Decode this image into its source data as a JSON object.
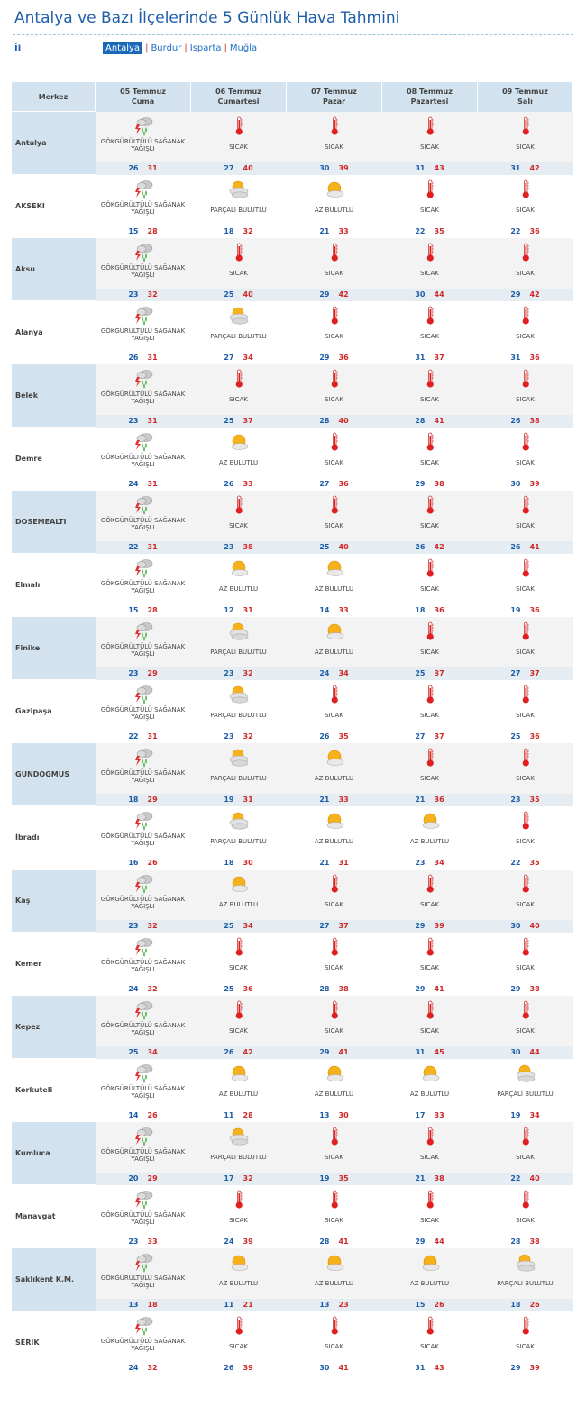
{
  "page": {
    "title": "Antalya ve Bazı İlçelerinde 5 Günlük Hava Tahmini",
    "il_label": "İl",
    "provinces": [
      "Antalya",
      "Burdur",
      "Isparta",
      "Muğla"
    ],
    "active_province": "Antalya"
  },
  "table": {
    "merkez_label": "Merkez",
    "days": [
      {
        "date": "05 Temmuz",
        "weekday": "Cuma"
      },
      {
        "date": "06 Temmuz",
        "weekday": "Cumartesi"
      },
      {
        "date": "07 Temmuz",
        "weekday": "Pazar"
      },
      {
        "date": "08 Temmuz",
        "weekday": "Pazartesi"
      },
      {
        "date": "09 Temmuz",
        "weekday": "Salı"
      }
    ],
    "rows": [
      {
        "city": "Antalya",
        "f": [
          [
            "storm-icon",
            "GÖKGÜRÜLTÜLÜ SAĞANAK YAĞIŞLI",
            "26",
            "31"
          ],
          [
            "thermometer-icon",
            "SICAK",
            "27",
            "40"
          ],
          [
            "thermometer-icon",
            "SICAK",
            "30",
            "39"
          ],
          [
            "thermometer-icon",
            "SICAK",
            "31",
            "43"
          ],
          [
            "thermometer-icon",
            "SICAK",
            "31",
            "42"
          ]
        ]
      },
      {
        "city": "AKSEKI",
        "f": [
          [
            "storm-icon",
            "GÖKGÜRÜLTÜLÜ SAĞANAK YAĞIŞLI",
            "15",
            "28"
          ],
          [
            "partly-cloudy-icon",
            "PARÇALI BULUTLU",
            "18",
            "32"
          ],
          [
            "mostly-sunny-icon",
            "AZ BULUTLU",
            "21",
            "33"
          ],
          [
            "thermometer-icon",
            "SICAK",
            "22",
            "35"
          ],
          [
            "thermometer-icon",
            "SICAK",
            "22",
            "36"
          ]
        ]
      },
      {
        "city": "Aksu",
        "f": [
          [
            "storm-icon",
            "GÖKGÜRÜLTÜLÜ SAĞANAK YAĞIŞLI",
            "23",
            "32"
          ],
          [
            "thermometer-icon",
            "SICAK",
            "25",
            "40"
          ],
          [
            "thermometer-icon",
            "SICAK",
            "29",
            "42"
          ],
          [
            "thermometer-icon",
            "SICAK",
            "30",
            "44"
          ],
          [
            "thermometer-icon",
            "SICAK",
            "29",
            "42"
          ]
        ]
      },
      {
        "city": "Alanya",
        "f": [
          [
            "storm-icon",
            "GÖKGÜRÜLTÜLÜ SAĞANAK YAĞIŞLI",
            "26",
            "31"
          ],
          [
            "partly-cloudy-icon",
            "PARÇALI BULUTLU",
            "27",
            "34"
          ],
          [
            "thermometer-icon",
            "SICAK",
            "29",
            "36"
          ],
          [
            "thermometer-icon",
            "SICAK",
            "31",
            "37"
          ],
          [
            "thermometer-icon",
            "SICAK",
            "31",
            "36"
          ]
        ]
      },
      {
        "city": "Belek",
        "f": [
          [
            "storm-icon",
            "GÖKGÜRÜLTÜLÜ SAĞANAK YAĞIŞLI",
            "23",
            "31"
          ],
          [
            "thermometer-icon",
            "SICAK",
            "25",
            "37"
          ],
          [
            "thermometer-icon",
            "SICAK",
            "28",
            "40"
          ],
          [
            "thermometer-icon",
            "SICAK",
            "28",
            "41"
          ],
          [
            "thermometer-icon",
            "SICAK",
            "26",
            "38"
          ]
        ]
      },
      {
        "city": "Demre",
        "f": [
          [
            "storm-icon",
            "GÖKGÜRÜLTÜLÜ SAĞANAK YAĞIŞLI",
            "24",
            "31"
          ],
          [
            "mostly-sunny-icon",
            "AZ BULUTLU",
            "26",
            "33"
          ],
          [
            "thermometer-icon",
            "SICAK",
            "27",
            "36"
          ],
          [
            "thermometer-icon",
            "SICAK",
            "29",
            "38"
          ],
          [
            "thermometer-icon",
            "SICAK",
            "30",
            "39"
          ]
        ]
      },
      {
        "city": "DOSEMEALTI",
        "f": [
          [
            "storm-icon",
            "GÖKGÜRÜLTÜLÜ SAĞANAK YAĞIŞLI",
            "22",
            "31"
          ],
          [
            "thermometer-icon",
            "SICAK",
            "23",
            "38"
          ],
          [
            "thermometer-icon",
            "SICAK",
            "25",
            "40"
          ],
          [
            "thermometer-icon",
            "SICAK",
            "26",
            "42"
          ],
          [
            "thermometer-icon",
            "SICAK",
            "26",
            "41"
          ]
        ]
      },
      {
        "city": "Elmalı",
        "f": [
          [
            "storm-icon",
            "GÖKGÜRÜLTÜLÜ SAĞANAK YAĞIŞLI",
            "15",
            "28"
          ],
          [
            "mostly-sunny-icon",
            "AZ BULUTLU",
            "12",
            "31"
          ],
          [
            "mostly-sunny-icon",
            "AZ BULUTLU",
            "14",
            "33"
          ],
          [
            "thermometer-icon",
            "SICAK",
            "18",
            "36"
          ],
          [
            "thermometer-icon",
            "SICAK",
            "19",
            "36"
          ]
        ]
      },
      {
        "city": "Finike",
        "f": [
          [
            "storm-icon",
            "GÖKGÜRÜLTÜLÜ SAĞANAK YAĞIŞLI",
            "23",
            "29"
          ],
          [
            "partly-cloudy-icon",
            "PARÇALI BULUTLU",
            "23",
            "32"
          ],
          [
            "mostly-sunny-icon",
            "AZ BULUTLU",
            "24",
            "34"
          ],
          [
            "thermometer-icon",
            "SICAK",
            "25",
            "37"
          ],
          [
            "thermometer-icon",
            "SICAK",
            "27",
            "37"
          ]
        ]
      },
      {
        "city": "Gazipaşa",
        "f": [
          [
            "storm-icon",
            "GÖKGÜRÜLTÜLÜ SAĞANAK YAĞIŞLI",
            "22",
            "31"
          ],
          [
            "partly-cloudy-icon",
            "PARÇALI BULUTLU",
            "23",
            "32"
          ],
          [
            "thermometer-icon",
            "SICAK",
            "26",
            "35"
          ],
          [
            "thermometer-icon",
            "SICAK",
            "27",
            "37"
          ],
          [
            "thermometer-icon",
            "SICAK",
            "25",
            "36"
          ]
        ]
      },
      {
        "city": "GUNDOGMUS",
        "f": [
          [
            "storm-icon",
            "GÖKGÜRÜLTÜLÜ SAĞANAK YAĞIŞLI",
            "18",
            "29"
          ],
          [
            "partly-cloudy-icon",
            "PARÇALI BULUTLU",
            "19",
            "31"
          ],
          [
            "mostly-sunny-icon",
            "AZ BULUTLU",
            "21",
            "33"
          ],
          [
            "thermometer-icon",
            "SICAK",
            "21",
            "36"
          ],
          [
            "thermometer-icon",
            "SICAK",
            "23",
            "35"
          ]
        ]
      },
      {
        "city": "İbradı",
        "f": [
          [
            "storm-icon",
            "GÖKGÜRÜLTÜLÜ SAĞANAK YAĞIŞLI",
            "16",
            "26"
          ],
          [
            "partly-cloudy-icon",
            "PARÇALI BULUTLU",
            "18",
            "30"
          ],
          [
            "mostly-sunny-icon",
            "AZ BULUTLU",
            "21",
            "31"
          ],
          [
            "mostly-sunny-icon",
            "AZ BULUTLU",
            "23",
            "34"
          ],
          [
            "thermometer-icon",
            "SICAK",
            "22",
            "35"
          ]
        ]
      },
      {
        "city": "Kaş",
        "f": [
          [
            "storm-icon",
            "GÖKGÜRÜLTÜLÜ SAĞANAK YAĞIŞLI",
            "23",
            "32"
          ],
          [
            "mostly-sunny-icon",
            "AZ BULUTLU",
            "25",
            "34"
          ],
          [
            "thermometer-icon",
            "SICAK",
            "27",
            "37"
          ],
          [
            "thermometer-icon",
            "SICAK",
            "29",
            "39"
          ],
          [
            "thermometer-icon",
            "SICAK",
            "30",
            "40"
          ]
        ]
      },
      {
        "city": "Kemer",
        "f": [
          [
            "storm-icon",
            "GÖKGÜRÜLTÜLÜ SAĞANAK YAĞIŞLI",
            "24",
            "32"
          ],
          [
            "thermometer-icon",
            "SICAK",
            "25",
            "36"
          ],
          [
            "thermometer-icon",
            "SICAK",
            "28",
            "38"
          ],
          [
            "thermometer-icon",
            "SICAK",
            "29",
            "41"
          ],
          [
            "thermometer-icon",
            "SICAK",
            "29",
            "38"
          ]
        ]
      },
      {
        "city": "Kepez",
        "f": [
          [
            "storm-icon",
            "GÖKGÜRÜLTÜLÜ SAĞANAK YAĞIŞLI",
            "25",
            "34"
          ],
          [
            "thermometer-icon",
            "SICAK",
            "26",
            "42"
          ],
          [
            "thermometer-icon",
            "SICAK",
            "29",
            "41"
          ],
          [
            "thermometer-icon",
            "SICAK",
            "31",
            "45"
          ],
          [
            "thermometer-icon",
            "SICAK",
            "30",
            "44"
          ]
        ]
      },
      {
        "city": "Korkuteli",
        "f": [
          [
            "storm-icon",
            "GÖKGÜRÜLTÜLÜ SAĞANAK YAĞIŞLI",
            "14",
            "26"
          ],
          [
            "mostly-sunny-icon",
            "AZ BULUTLU",
            "11",
            "28"
          ],
          [
            "mostly-sunny-icon",
            "AZ BULUTLU",
            "13",
            "30"
          ],
          [
            "mostly-sunny-icon",
            "AZ BULUTLU",
            "17",
            "33"
          ],
          [
            "partly-cloudy-icon",
            "PARÇALI BULUTLU",
            "19",
            "34"
          ]
        ]
      },
      {
        "city": "Kumluca",
        "f": [
          [
            "storm-icon",
            "GÖKGÜRÜLTÜLÜ SAĞANAK YAĞIŞLI",
            "20",
            "29"
          ],
          [
            "partly-cloudy-icon",
            "PARÇALI BULUTLU",
            "17",
            "32"
          ],
          [
            "thermometer-icon",
            "SICAK",
            "19",
            "35"
          ],
          [
            "thermometer-icon",
            "SICAK",
            "21",
            "38"
          ],
          [
            "thermometer-icon",
            "SICAK",
            "22",
            "40"
          ]
        ]
      },
      {
        "city": "Manavgat",
        "f": [
          [
            "storm-icon",
            "GÖKGÜRÜLTÜLÜ SAĞANAK YAĞIŞLI",
            "23",
            "33"
          ],
          [
            "thermometer-icon",
            "SICAK",
            "24",
            "39"
          ],
          [
            "thermometer-icon",
            "SICAK",
            "28",
            "41"
          ],
          [
            "thermometer-icon",
            "SICAK",
            "29",
            "44"
          ],
          [
            "thermometer-icon",
            "SICAK",
            "28",
            "38"
          ]
        ]
      },
      {
        "city": "Saklıkent K.M.",
        "f": [
          [
            "storm-icon",
            "GÖKGÜRÜLTÜLÜ SAĞANAK YAĞIŞLI",
            "13",
            "18"
          ],
          [
            "mostly-sunny-icon",
            "AZ BULUTLU",
            "11",
            "21"
          ],
          [
            "mostly-sunny-icon",
            "AZ BULUTLU",
            "13",
            "23"
          ],
          [
            "mostly-sunny-icon",
            "AZ BULUTLU",
            "15",
            "26"
          ],
          [
            "partly-cloudy-icon",
            "PARÇALI BULUTLU",
            "18",
            "26"
          ]
        ]
      },
      {
        "city": "SERIK",
        "f": [
          [
            "storm-icon",
            "GÖKGÜRÜLTÜLÜ SAĞANAK YAĞIŞLI",
            "24",
            "32"
          ],
          [
            "thermometer-icon",
            "SICAK",
            "26",
            "39"
          ],
          [
            "thermometer-icon",
            "SICAK",
            "30",
            "41"
          ],
          [
            "thermometer-icon",
            "SICAK",
            "31",
            "43"
          ],
          [
            "thermometer-icon",
            "SICAK",
            "29",
            "39"
          ]
        ]
      }
    ]
  },
  "colors": {
    "title": "#1f5ea8",
    "min_temp": "#1c5da8",
    "max_temp": "#d02828",
    "header_bg": "#d2e3ef"
  }
}
